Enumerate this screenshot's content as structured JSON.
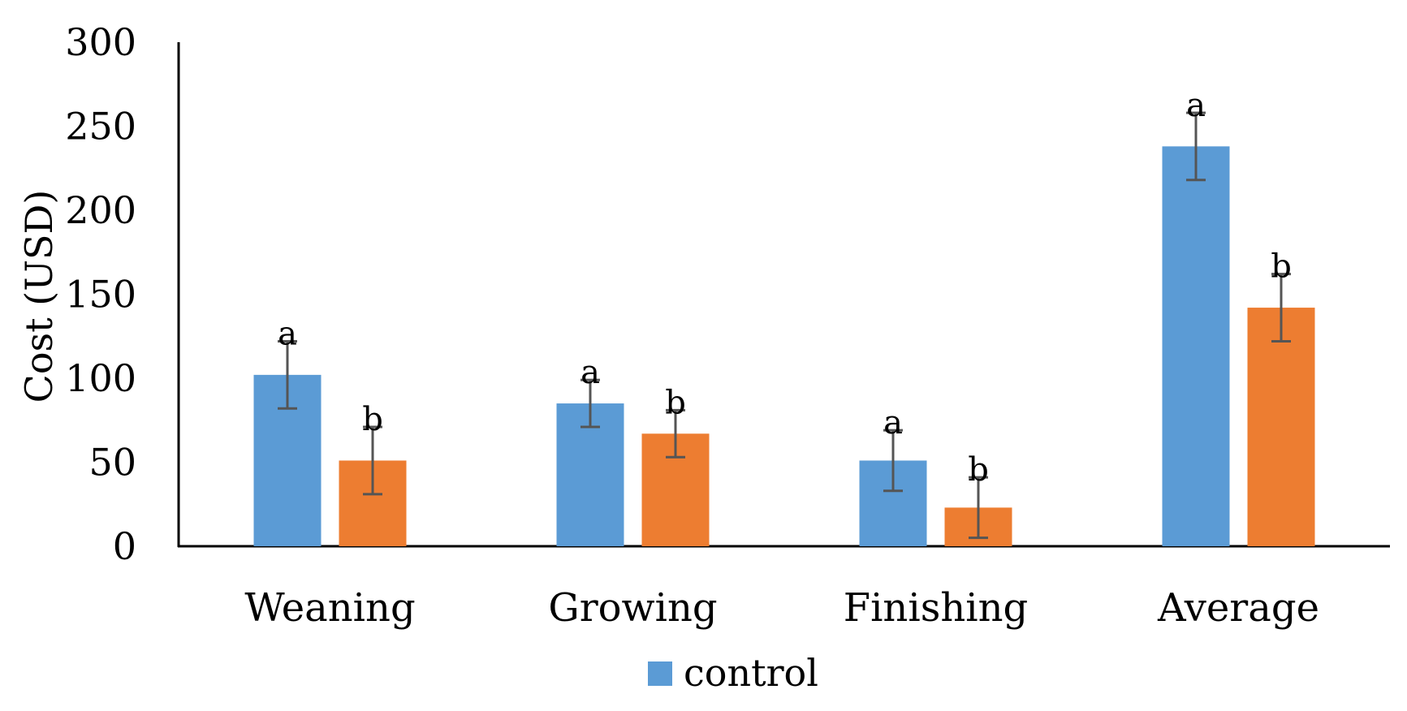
{
  "chart_data": {
    "type": "bar",
    "ylabel": "Cost (USD)",
    "ylim": [
      0,
      300
    ],
    "yticks": [
      0,
      50,
      100,
      150,
      200,
      250,
      300
    ],
    "categories": [
      "Weaning",
      "Growing",
      "Finishing",
      "Average"
    ],
    "grid": false,
    "legend_position": "bottom",
    "series": [
      {
        "name": "control",
        "color": "#5B9BD5",
        "values": [
          102,
          85,
          51,
          238
        ],
        "error": [
          20,
          14,
          18,
          20
        ],
        "labels": [
          "a",
          "a",
          "a",
          "a"
        ]
      },
      {
        "color": "#ED7D31",
        "values": [
          51,
          67,
          23,
          142
        ],
        "error": [
          20,
          14,
          18,
          20
        ],
        "labels": [
          "b",
          "b",
          "b",
          "b"
        ]
      }
    ]
  }
}
